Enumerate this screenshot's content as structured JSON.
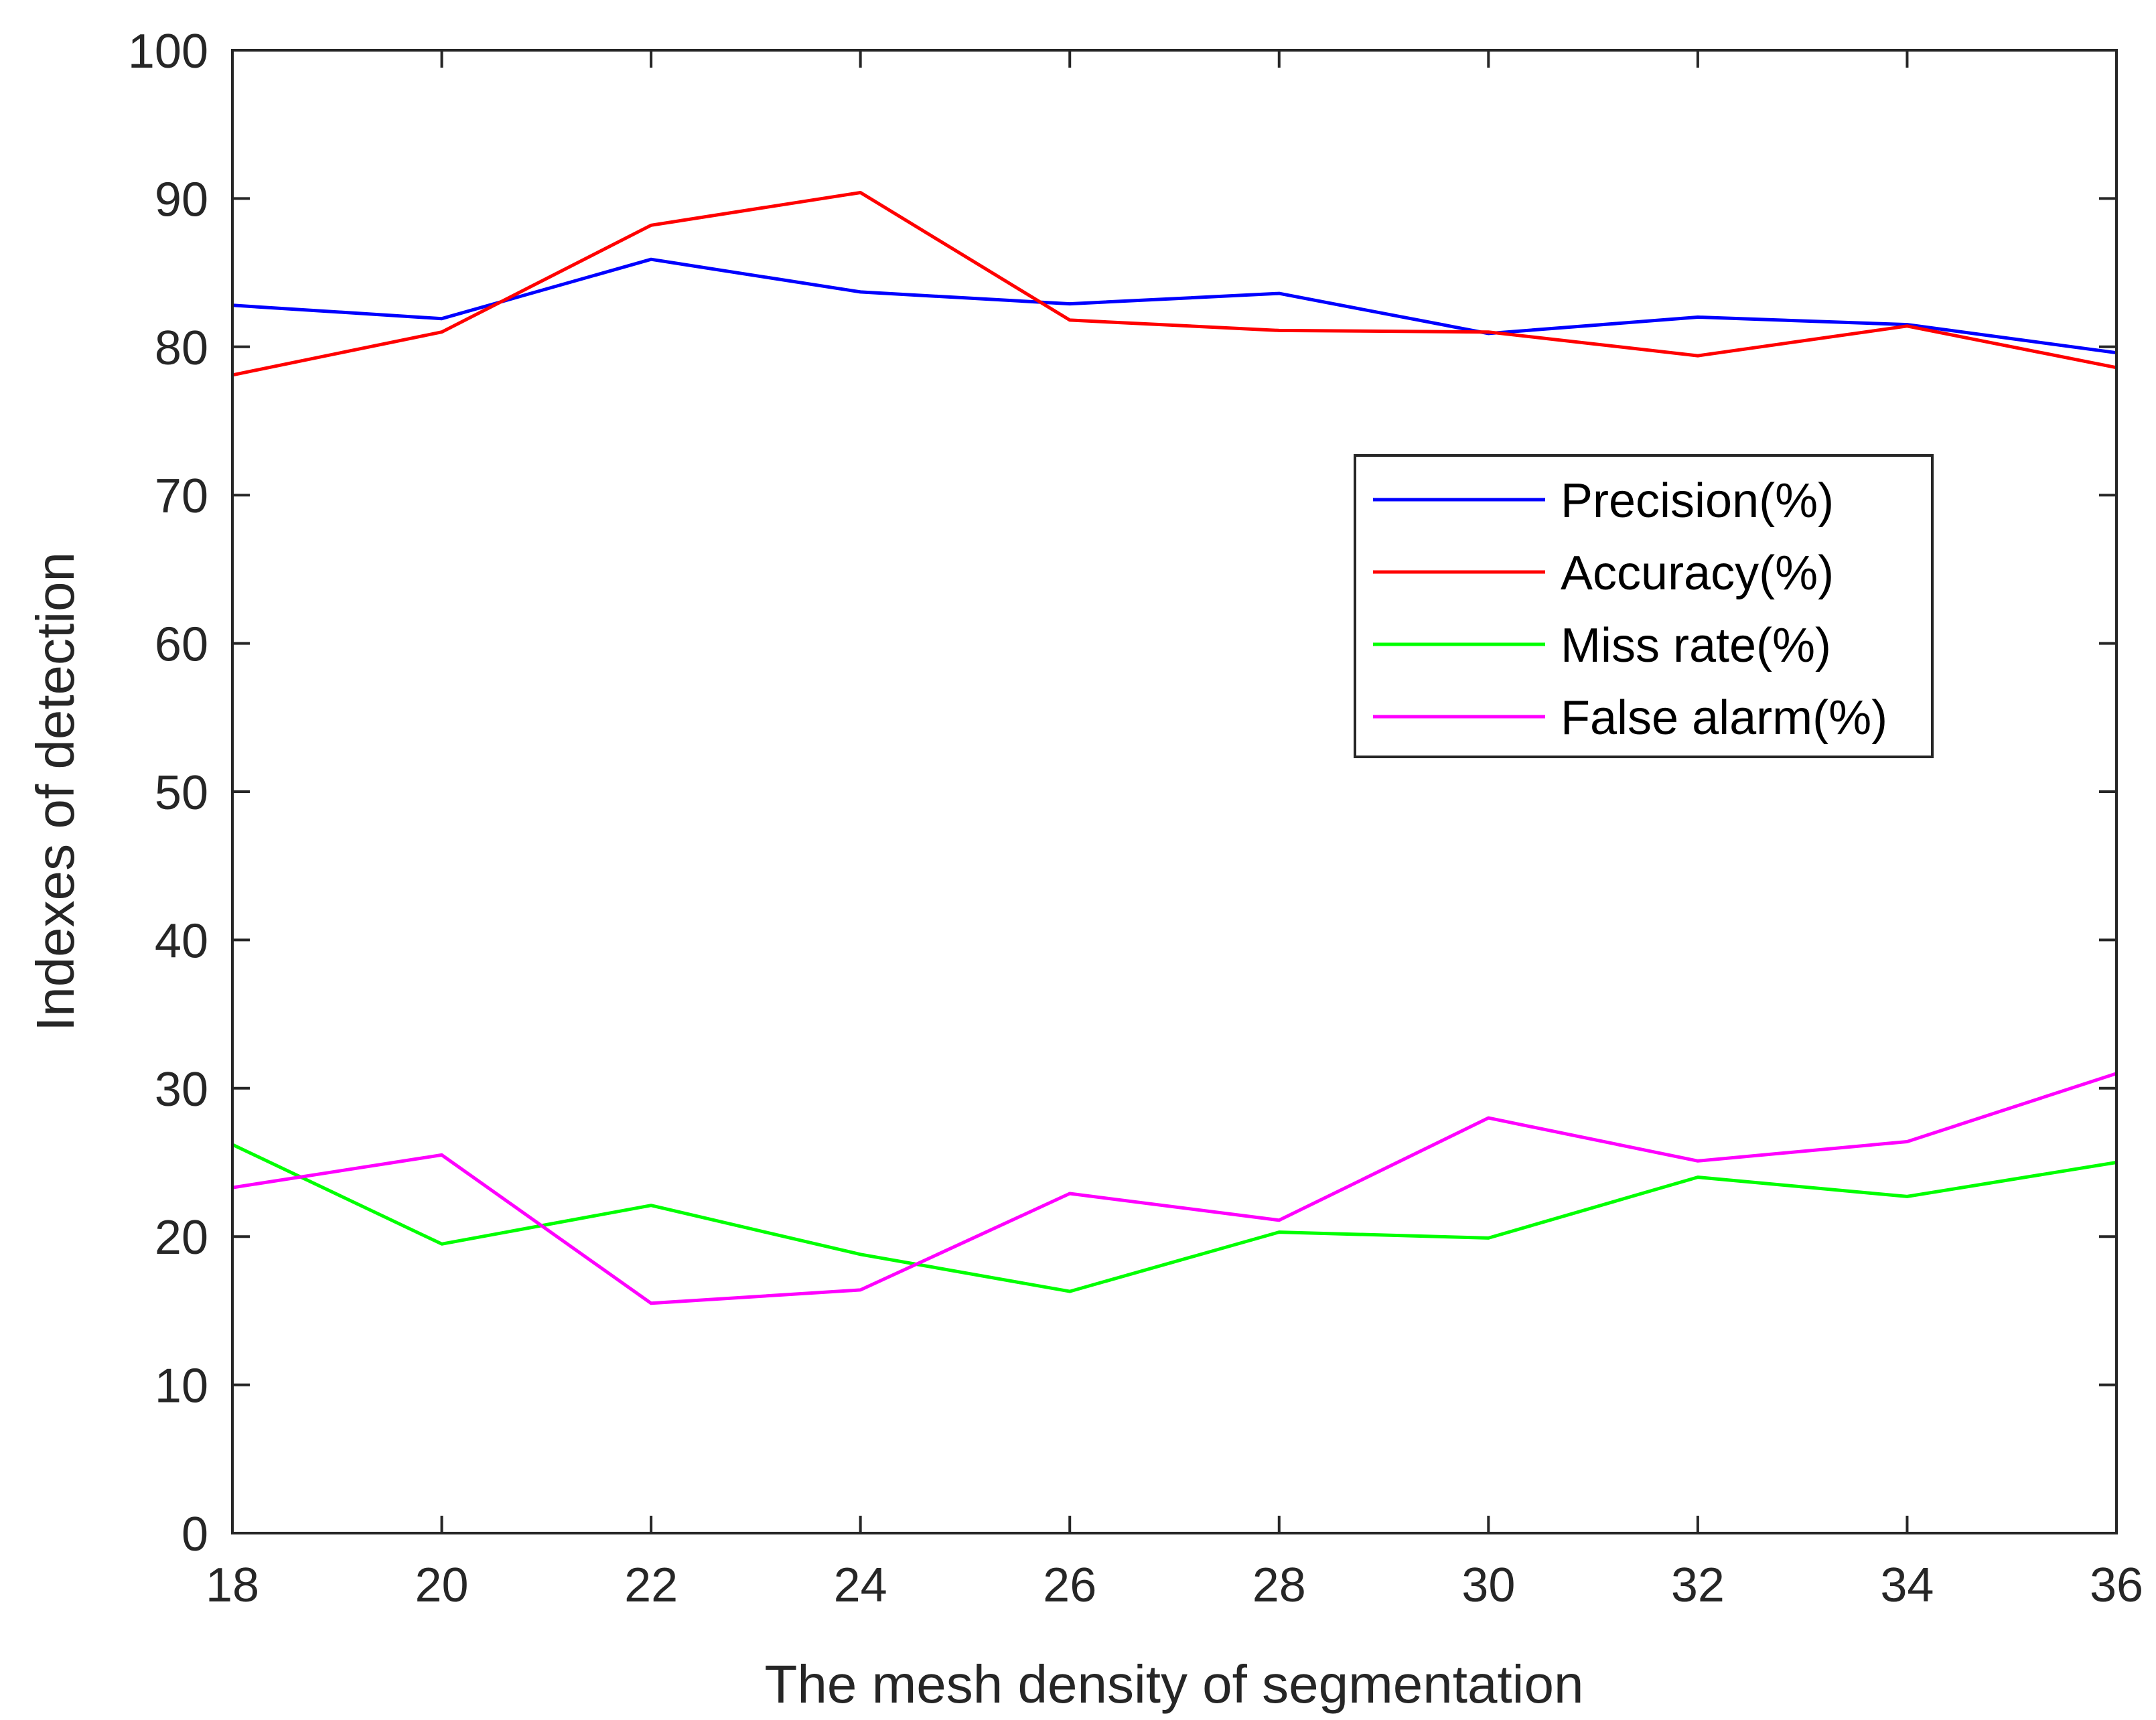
{
  "chart_data": {
    "type": "line",
    "title": "",
    "xlabel": "The mesh density of segmentation",
    "ylabel": "Indexes of detection",
    "x": [
      18,
      20,
      22,
      24,
      26,
      28,
      30,
      32,
      34,
      36
    ],
    "xlim": [
      18,
      36
    ],
    "ylim": [
      0,
      100
    ],
    "xticks": [
      "18",
      "20",
      "22",
      "24",
      "26",
      "28",
      "30",
      "32",
      "34",
      "36"
    ],
    "yticks": [
      "0",
      "10",
      "20",
      "30",
      "40",
      "50",
      "60",
      "70",
      "80",
      "90",
      "100"
    ],
    "grid": false,
    "legend_position": "right",
    "series": [
      {
        "name": "Precision(%)",
        "color": "#0000ff",
        "values": [
          82.8,
          81.9,
          85.9,
          83.7,
          82.9,
          83.6,
          80.9,
          82.0,
          81.5,
          79.6
        ]
      },
      {
        "name": "Accuracy(%)",
        "color": "#ff0000",
        "values": [
          78.1,
          81.0,
          88.2,
          90.4,
          81.8,
          81.1,
          81.0,
          79.4,
          81.4,
          78.6
        ]
      },
      {
        "name": "Miss rate(%)",
        "color": "#00ff00",
        "values": [
          26.2,
          19.5,
          22.1,
          18.8,
          16.3,
          20.3,
          19.9,
          24.0,
          22.7,
          25.0
        ]
      },
      {
        "name": "False alarm(%)",
        "color": "#ff00ff",
        "values": [
          23.3,
          25.5,
          15.5,
          16.4,
          22.9,
          21.1,
          28.0,
          25.1,
          26.4,
          31.0
        ]
      }
    ]
  }
}
